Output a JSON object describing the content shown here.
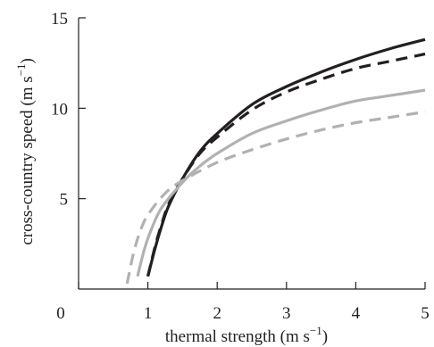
{
  "chart_data": {
    "type": "line",
    "xlabel": "thermal strength (m s",
    "xlabel_sup": "−1",
    "xlabel_close": ")",
    "ylabel": "cross-country speed (m s",
    "ylabel_sup": "−1",
    "ylabel_close": ")",
    "xlim": [
      0,
      5
    ],
    "ylim": [
      0,
      15
    ],
    "xticks": [
      0,
      1,
      2,
      3,
      4,
      5
    ],
    "yticks": [
      5,
      10,
      15
    ],
    "xtick_labels": [
      "0",
      "1",
      "2",
      "3",
      "4",
      "5"
    ],
    "ytick_labels": [
      "5",
      "10",
      "15"
    ],
    "grid": false,
    "series": [
      {
        "color": "#231f20",
        "dash": "solid",
        "points": [
          [
            1.0,
            0.7
          ],
          [
            1.1,
            2.2
          ],
          [
            1.2,
            3.5
          ],
          [
            1.3,
            4.6
          ],
          [
            1.5,
            6.1
          ],
          [
            1.75,
            7.6
          ],
          [
            2.0,
            8.6
          ],
          [
            2.5,
            10.2
          ],
          [
            3.0,
            11.2
          ],
          [
            3.5,
            12.0
          ],
          [
            4.0,
            12.7
          ],
          [
            4.5,
            13.3
          ],
          [
            5.0,
            13.8
          ]
        ]
      },
      {
        "color": "#231f20",
        "dash": "dashed",
        "points": [
          [
            1.0,
            0.7
          ],
          [
            1.1,
            2.3
          ],
          [
            1.2,
            3.6
          ],
          [
            1.3,
            4.7
          ],
          [
            1.5,
            6.1
          ],
          [
            1.75,
            7.5
          ],
          [
            2.0,
            8.4
          ],
          [
            2.5,
            9.9
          ],
          [
            3.0,
            10.9
          ],
          [
            3.5,
            11.6
          ],
          [
            4.0,
            12.2
          ],
          [
            4.5,
            12.6
          ],
          [
            5.0,
            13.0
          ]
        ]
      },
      {
        "color": "#b1b1b1",
        "dash": "solid",
        "points": [
          [
            0.85,
            0.7
          ],
          [
            0.95,
            2.2
          ],
          [
            1.05,
            3.3
          ],
          [
            1.2,
            4.5
          ],
          [
            1.5,
            5.9
          ],
          [
            1.75,
            6.8
          ],
          [
            2.0,
            7.5
          ],
          [
            2.5,
            8.6
          ],
          [
            3.0,
            9.3
          ],
          [
            3.5,
            9.9
          ],
          [
            4.0,
            10.4
          ],
          [
            4.5,
            10.7
          ],
          [
            5.0,
            11.0
          ]
        ]
      },
      {
        "color": "#b1b1b1",
        "dash": "dashed",
        "points": [
          [
            0.7,
            0.3
          ],
          [
            0.8,
            2.1
          ],
          [
            0.9,
            3.3
          ],
          [
            1.0,
            4.1
          ],
          [
            1.25,
            5.3
          ],
          [
            1.5,
            6.0
          ],
          [
            2.0,
            7.0
          ],
          [
            2.5,
            7.7
          ],
          [
            3.0,
            8.3
          ],
          [
            3.5,
            8.8
          ],
          [
            4.0,
            9.2
          ],
          [
            4.5,
            9.5
          ],
          [
            5.0,
            9.8
          ]
        ]
      }
    ]
  }
}
